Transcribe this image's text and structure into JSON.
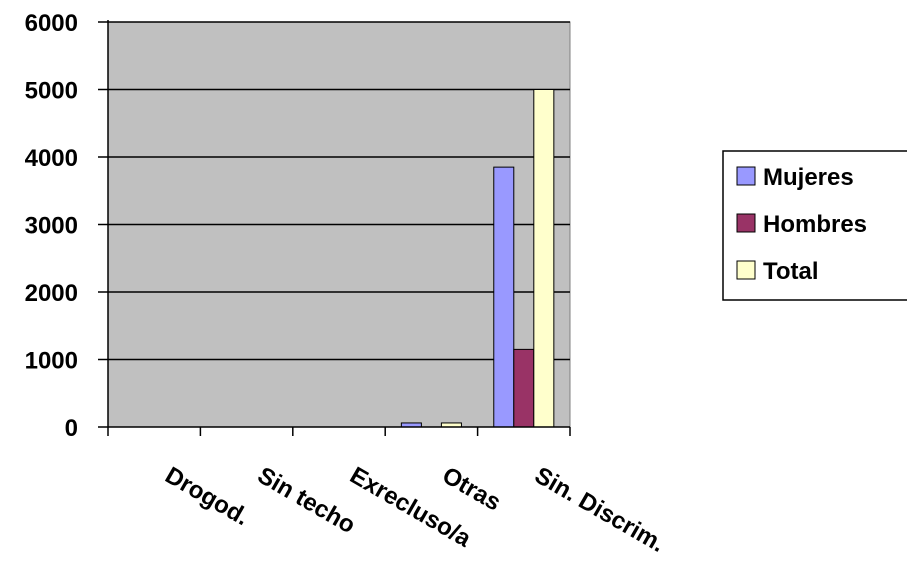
{
  "chart_data": {
    "type": "bar",
    "categories": [
      "Drogod.",
      "Sin techo",
      "Exrecluso/a",
      "Otras",
      "Sin. Discrim."
    ],
    "series": [
      {
        "name": "Mujeres",
        "color": "#9999ff",
        "values": [
          0,
          0,
          0,
          60,
          3850
        ]
      },
      {
        "name": "Hombres",
        "color": "#993366",
        "values": [
          0,
          0,
          0,
          0,
          1150
        ]
      },
      {
        "name": "Total",
        "color": "#ffffcc",
        "values": [
          0,
          0,
          0,
          60,
          5000
        ]
      }
    ],
    "title": "",
    "xlabel": "",
    "ylabel": "",
    "ylim": [
      0,
      6000
    ],
    "yticks": [
      0,
      1000,
      2000,
      3000,
      4000,
      5000,
      6000
    ],
    "grid": true,
    "plot_background": "#c0c0c0",
    "legend_position": "right"
  }
}
